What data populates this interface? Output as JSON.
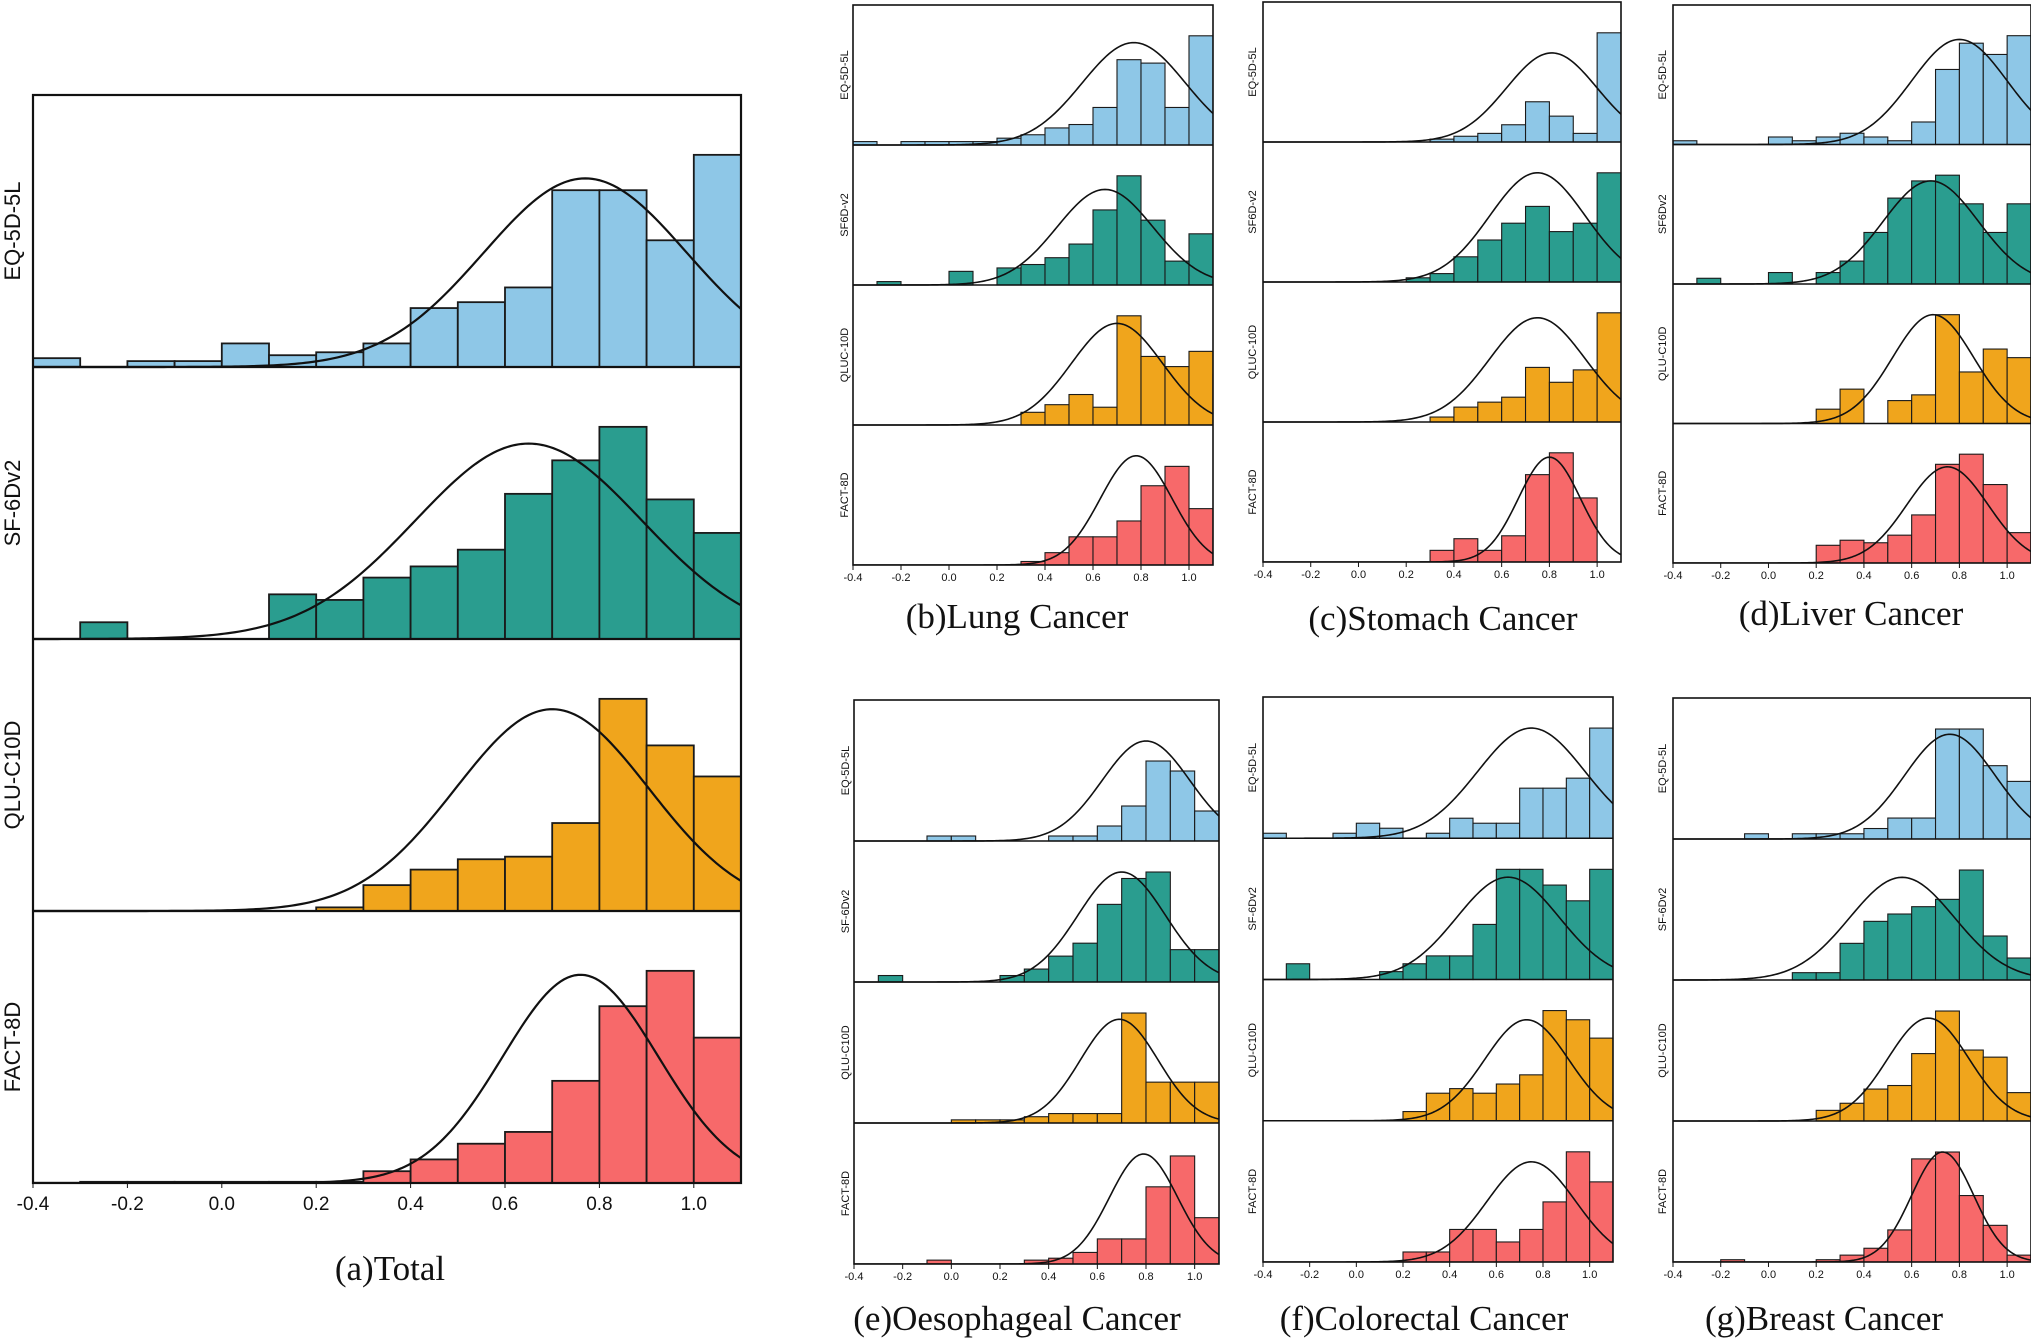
{
  "chart_data": [
    {
      "id": "a",
      "type": "histogram",
      "title": "(a)Total",
      "xlim": [
        -0.4,
        1.1
      ],
      "bin_width": 0.1,
      "xticks": [
        "-0.4",
        "-0.2",
        "0.0",
        "0.2",
        "0.4",
        "0.6",
        "0.8",
        "1.0"
      ],
      "series": [
        {
          "name": "EQ-5D-5L",
          "color": "#8ec7e7",
          "bin_start": -0.4,
          "counts": [
            1.5,
            0,
            1,
            1,
            4,
            2,
            2.5,
            4,
            10,
            11,
            13.5,
            30,
            30,
            21.5,
            36
          ],
          "normal": {
            "mean": 0.77,
            "sd": 0.215,
            "peak": 32
          }
        },
        {
          "name": "SF-6Dv2",
          "color": "#2a9d8f",
          "bin_start": -0.3,
          "counts": [
            3,
            0,
            0,
            0,
            8,
            7,
            11,
            13,
            16,
            26,
            32,
            38,
            25,
            19,
            25
          ],
          "normal": {
            "mean": 0.65,
            "sd": 0.24,
            "peak": 35
          }
        },
        {
          "name": "QLU-C10D",
          "color": "#f0a51c",
          "bin_start": -0.4,
          "counts": [
            0,
            0,
            0,
            0,
            0,
            0,
            0.7,
            5,
            8,
            10,
            10.5,
            17,
            41,
            32,
            26,
            29,
            14
          ],
          "normal": {
            "mean": 0.7,
            "sd": 0.205,
            "peak": 39
          }
        },
        {
          "name": "FACT-8D",
          "color": "#f7696a",
          "bin_start": -0.3,
          "counts": [
            0.3,
            0.3,
            0.3,
            0.3,
            0.3,
            0.3,
            3,
            6,
            10,
            13,
            26,
            45,
            54,
            37,
            5
          ],
          "normal": {
            "mean": 0.76,
            "sd": 0.165,
            "peak": 53
          }
        }
      ]
    },
    {
      "id": "b",
      "type": "histogram",
      "title": "(b)Lung Cancer",
      "xlim": [
        -0.4,
        1.1
      ],
      "bin_width": 0.1,
      "xticks": [
        "-0.4",
        "-0.2",
        "0.0",
        "0.2",
        "0.4",
        "0.6",
        "0.8",
        "1.0"
      ],
      "series": [
        {
          "name": "EQ-5D-5L",
          "color": "#8ec7e7",
          "bin_start": -0.4,
          "counts": [
            1,
            0,
            1,
            1,
            1,
            1,
            2,
            3,
            5,
            6,
            11,
            25,
            24,
            11,
            32
          ],
          "normal": {
            "mean": 0.77,
            "sd": 0.215,
            "peak": 30
          }
        },
        {
          "name": "SF6D-v2",
          "color": "#2a9d8f",
          "bin_start": -0.4,
          "counts": [
            0,
            1,
            0,
            0,
            4,
            0,
            5,
            6,
            8,
            12,
            22,
            32,
            19,
            7,
            15
          ],
          "normal": {
            "mean": 0.65,
            "sd": 0.2,
            "peak": 28
          }
        },
        {
          "name": "QLUC-10D",
          "color": "#f0a51c",
          "bin_start": -0.4,
          "counts": [
            0,
            0,
            0,
            0,
            0,
            0,
            0,
            5,
            8,
            12,
            7,
            43,
            27,
            23,
            29,
            20
          ],
          "normal": {
            "mean": 0.7,
            "sd": 0.19,
            "peak": 40
          }
        },
        {
          "name": "FACT-8D",
          "color": "#f7696a",
          "bin_start": -0.4,
          "counts": [
            0,
            0,
            0,
            0,
            0,
            0,
            0,
            2,
            7,
            16,
            16,
            25,
            45,
            56,
            32,
            16
          ],
          "normal": {
            "mean": 0.78,
            "sd": 0.15,
            "peak": 62
          }
        }
      ]
    },
    {
      "id": "c",
      "type": "histogram",
      "title": "(c)Stomach Cancer",
      "xlim": [
        -0.4,
        1.1
      ],
      "bin_width": 0.1,
      "xticks": [
        "-0.4",
        "-0.2",
        "0.0",
        "0.2",
        "0.4",
        "0.6",
        "0.8",
        "1.0"
      ],
      "series": [
        {
          "name": "EQ-5D-5L",
          "color": "#8ec7e7",
          "bin_start": -0.4,
          "counts": [
            0,
            0,
            0,
            0,
            0,
            0,
            0,
            1,
            2,
            3,
            6,
            14,
            9,
            3,
            38
          ],
          "normal": {
            "mean": 0.81,
            "sd": 0.19,
            "peak": 31
          }
        },
        {
          "name": "SF6D-v2",
          "color": "#2a9d8f",
          "bin_start": -0.4,
          "counts": [
            0,
            0,
            0,
            0,
            0,
            0,
            1,
            2,
            6,
            10,
            14,
            18,
            12,
            14,
            26
          ],
          "normal": {
            "mean": 0.75,
            "sd": 0.2,
            "peak": 26
          }
        },
        {
          "name": "QLUC-10D",
          "color": "#f0a51c",
          "bin_start": -0.4,
          "counts": [
            0,
            0,
            0,
            0,
            0,
            0,
            0,
            2,
            6,
            8,
            10,
            22,
            16,
            21,
            44,
            12
          ],
          "normal": {
            "mean": 0.75,
            "sd": 0.2,
            "peak": 42
          }
        },
        {
          "name": "FACT-8D",
          "color": "#f7696a",
          "bin_start": -0.4,
          "counts": [
            0,
            0,
            0,
            0,
            0,
            0,
            0,
            8,
            16,
            8,
            18,
            60,
            75,
            44
          ],
          "normal": {
            "mean": 0.8,
            "sd": 0.13,
            "peak": 72
          }
        }
      ]
    },
    {
      "id": "d",
      "type": "histogram",
      "title": "(d)Liver Cancer",
      "xlim": [
        -0.4,
        1.1
      ],
      "bin_width": 0.1,
      "xticks": [
        "-0.4",
        "-0.2",
        "0.0",
        "0.2",
        "0.4",
        "0.6",
        "0.8",
        "1.0"
      ],
      "series": [
        {
          "name": "EQ-5D-5L",
          "color": "#8ec7e7",
          "bin_start": -0.4,
          "counts": [
            1,
            0,
            0,
            0,
            2,
            1,
            2,
            3,
            2,
            1,
            6,
            20,
            27,
            24,
            29
          ],
          "normal": {
            "mean": 0.8,
            "sd": 0.2,
            "peak": 28
          }
        },
        {
          "name": "SF6Dv2",
          "color": "#2a9d8f",
          "bin_start": -0.4,
          "counts": [
            0,
            1,
            0,
            0,
            2,
            0,
            2,
            4,
            9,
            15,
            18,
            19,
            14,
            9,
            14
          ],
          "normal": {
            "mean": 0.68,
            "sd": 0.2,
            "peak": 18
          }
        },
        {
          "name": "QLU-C10D",
          "color": "#f0a51c",
          "bin_start": -0.4,
          "counts": [
            0,
            0,
            0,
            0,
            0,
            0,
            5,
            12,
            0,
            8,
            10,
            38,
            18,
            26,
            23,
            6
          ],
          "normal": {
            "mean": 0.69,
            "sd": 0.17,
            "peak": 38
          }
        },
        {
          "name": "FACT-8D",
          "color": "#f7696a",
          "bin_start": -0.4,
          "counts": [
            0,
            0,
            0,
            0,
            0,
            0,
            7,
            9,
            8,
            11,
            19,
            39,
            43,
            31,
            12
          ],
          "normal": {
            "mean": 0.75,
            "sd": 0.17,
            "peak": 38
          }
        }
      ]
    },
    {
      "id": "e",
      "type": "histogram",
      "title": "(e)Oesophageal Cancer",
      "xlim": [
        -0.4,
        1.1
      ],
      "bin_width": 0.1,
      "xticks": [
        "-0.4",
        "-0.2",
        "0.0",
        "0.2",
        "0.4",
        "0.6",
        "0.8",
        "1.0"
      ],
      "series": [
        {
          "name": "EQ-5D-5L",
          "color": "#8ec7e7",
          "bin_start": -0.4,
          "counts": [
            0,
            0,
            0,
            1,
            1,
            0,
            0,
            0,
            1,
            1,
            3,
            7,
            16,
            14,
            6,
            22
          ],
          "normal": {
            "mean": 0.8,
            "sd": 0.18,
            "peak": 20
          }
        },
        {
          "name": "SF-6Dv2",
          "color": "#2a9d8f",
          "bin_start": -0.4,
          "counts": [
            0,
            1,
            0,
            0,
            0,
            0,
            1,
            2,
            4,
            6,
            12,
            16,
            17,
            5,
            5,
            13
          ],
          "normal": {
            "mean": 0.7,
            "sd": 0.18,
            "peak": 17
          }
        },
        {
          "name": "QLU-C10D",
          "color": "#f0a51c",
          "bin_start": -0.4,
          "counts": [
            0,
            0,
            0,
            0,
            1,
            1,
            1,
            2,
            3,
            3,
            3,
            35,
            13,
            13,
            13,
            8
          ],
          "normal": {
            "mean": 0.69,
            "sd": 0.16,
            "peak": 33
          }
        },
        {
          "name": "FACT-8D",
          "color": "#f7696a",
          "bin_start": -0.4,
          "counts": [
            0,
            0,
            0,
            2,
            0,
            0,
            0,
            2,
            3,
            6,
            13,
            13,
            40,
            56,
            24,
            9
          ],
          "normal": {
            "mean": 0.79,
            "sd": 0.14,
            "peak": 57
          }
        }
      ]
    },
    {
      "id": "f",
      "type": "histogram",
      "title": "(f)Colorectal Cancer",
      "xlim": [
        -0.4,
        1.1
      ],
      "bin_width": 0.1,
      "xticks": [
        "-0.4",
        "-0.2",
        "0.0",
        "0.2",
        "0.4",
        "0.6",
        "0.8",
        "1.0"
      ],
      "series": [
        {
          "name": "EQ-5D-5L",
          "color": "#8ec7e7",
          "bin_start": -0.4,
          "counts": [
            1,
            0,
            0,
            1,
            3,
            2,
            0,
            1,
            4,
            3,
            3,
            10,
            10,
            12,
            22
          ],
          "normal": {
            "mean": 0.75,
            "sd": 0.23,
            "peak": 22
          }
        },
        {
          "name": "SF-6Dv2",
          "color": "#2a9d8f",
          "bin_start": -0.4,
          "counts": [
            0,
            2,
            0,
            0,
            0,
            1,
            2,
            3,
            3,
            7,
            14,
            14,
            12,
            10,
            14
          ],
          "normal": {
            "mean": 0.65,
            "sd": 0.22,
            "peak": 13
          }
        },
        {
          "name": "QLU-C10D",
          "color": "#f0a51c",
          "bin_start": -0.4,
          "counts": [
            0,
            0,
            0,
            0,
            0,
            0,
            2,
            6,
            7,
            6,
            8,
            10,
            24,
            22,
            18,
            6
          ],
          "normal": {
            "mean": 0.73,
            "sd": 0.18,
            "peak": 22
          }
        },
        {
          "name": "FACT-8D",
          "color": "#f7696a",
          "bin_start": -0.4,
          "counts": [
            0,
            0,
            0,
            0,
            0,
            0,
            4,
            4,
            13,
            13,
            8,
            13,
            24,
            44,
            32,
            11
          ],
          "normal": {
            "mean": 0.75,
            "sd": 0.19,
            "peak": 40
          }
        }
      ]
    },
    {
      "id": "g",
      "type": "histogram",
      "title": "(g)Breast Cancer",
      "xlim": [
        -0.4,
        1.1
      ],
      "bin_width": 0.1,
      "xticks": [
        "-0.4",
        "-0.2",
        "0.0",
        "0.2",
        "0.4",
        "0.6",
        "0.8",
        "1.0"
      ],
      "series": [
        {
          "name": "EQ-5D-5L",
          "color": "#8ec7e7",
          "bin_start": -0.4,
          "counts": [
            0,
            0,
            0,
            1,
            0,
            1,
            1,
            1,
            2,
            4,
            4,
            21,
            21,
            14,
            11
          ],
          "normal": {
            "mean": 0.76,
            "sd": 0.19,
            "peak": 20
          }
        },
        {
          "name": "SF-6Dv2",
          "color": "#2a9d8f",
          "bin_start": -0.4,
          "counts": [
            0,
            0,
            0,
            0,
            0,
            1,
            1,
            5,
            8,
            9,
            10,
            11,
            15,
            6,
            3,
            4
          ],
          "normal": {
            "mean": 0.56,
            "sd": 0.22,
            "peak": 14
          }
        },
        {
          "name": "QLU-C10D",
          "color": "#f0a51c",
          "bin_start": -0.4,
          "counts": [
            0,
            0,
            0,
            0,
            0,
            0,
            3,
            5,
            9,
            10,
            19,
            31,
            20,
            18,
            8,
            4
          ],
          "normal": {
            "mean": 0.67,
            "sd": 0.17,
            "peak": 29
          }
        },
        {
          "name": "FACT-8D",
          "color": "#f7696a",
          "bin_start": -0.4,
          "counts": [
            0,
            0,
            1,
            0,
            0,
            0,
            1,
            3,
            6,
            14,
            45,
            48,
            29,
            16,
            3
          ],
          "normal": {
            "mean": 0.73,
            "sd": 0.13,
            "peak": 48
          }
        }
      ]
    }
  ]
}
